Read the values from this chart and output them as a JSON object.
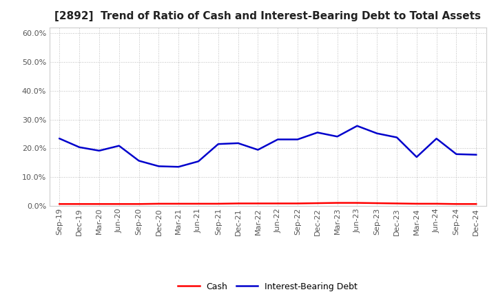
{
  "title": "[2892]  Trend of Ratio of Cash and Interest-Bearing Debt to Total Assets",
  "x_labels": [
    "Sep-19",
    "Dec-19",
    "Mar-20",
    "Jun-20",
    "Sep-20",
    "Dec-20",
    "Mar-21",
    "Jun-21",
    "Sep-21",
    "Dec-21",
    "Mar-22",
    "Jun-22",
    "Sep-22",
    "Dec-22",
    "Mar-23",
    "Jun-23",
    "Sep-23",
    "Dec-23",
    "Mar-24",
    "Jun-24",
    "Sep-24",
    "Dec-24"
  ],
  "cash": [
    0.007,
    0.007,
    0.007,
    0.007,
    0.007,
    0.008,
    0.008,
    0.008,
    0.008,
    0.009,
    0.009,
    0.009,
    0.009,
    0.01,
    0.011,
    0.011,
    0.01,
    0.009,
    0.008,
    0.008,
    0.007,
    0.007
  ],
  "interest_bearing_debt": [
    0.234,
    0.204,
    0.192,
    0.209,
    0.157,
    0.138,
    0.136,
    0.155,
    0.215,
    0.218,
    0.195,
    0.231,
    0.231,
    0.255,
    0.241,
    0.278,
    0.252,
    0.238,
    0.17,
    0.234,
    0.18,
    0.178
  ],
  "cash_color": "#ff0000",
  "debt_color": "#0000cc",
  "ylim": [
    0.0,
    0.62
  ],
  "yticks": [
    0.0,
    0.1,
    0.2,
    0.3,
    0.4,
    0.5,
    0.6
  ],
  "background_color": "#ffffff",
  "grid_color": "#bbbbbb",
  "title_color": "#222222",
  "legend_cash": "Cash",
  "legend_debt": "Interest-Bearing Debt",
  "title_fontsize": 11,
  "tick_fontsize": 8,
  "linewidth": 1.8
}
